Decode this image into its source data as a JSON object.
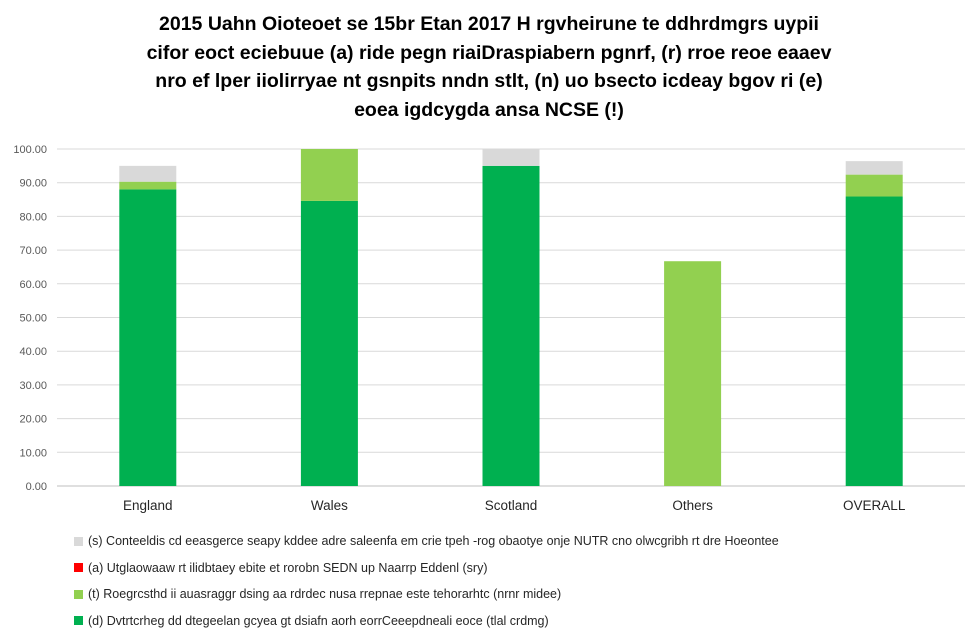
{
  "chart_data": {
    "type": "bar",
    "stacked": true,
    "title_lines": [
      "2015 Uahn Oioteoet se 15br Etan 2017 H rgvheirune te ddhrdmgrs uypii",
      "cifor eoct eciebuue (a) ride pegn riaiDraspiabern pgnrf, (r) rroe reoe eaaev",
      "nro ef lper iiolirryae nt gsnpits nndn stlt, (n) uo bsecto icdeay bgov ri (e)",
      "eoea igdcygda ansa NCSE (!)"
    ],
    "categories": [
      "England",
      "Wales",
      "Scotland",
      "Others",
      "OVERALL"
    ],
    "ylim": [
      0,
      100
    ],
    "yticks": [
      "0.00",
      "10.00",
      "20.00",
      "30.00",
      "40.00",
      "50.00",
      "60.00",
      "70.00",
      "80.00",
      "90.00",
      "100.00"
    ],
    "grid": true,
    "legend_position": "bottom",
    "series": [
      {
        "name": "(d) Dvtrtcrheg dd dtegeelan gcyea gt dsiafn aorh eorrCeeepdneali eoce (tlal crdmg)",
        "color": "#00b050",
        "values": [
          88.0,
          84.6,
          95.0,
          0.0,
          85.9
        ]
      },
      {
        "name": "(t) Roegrcsthd ii auasraggr dsing aa rdrdec nusa rrepnae este tehorarhtc (nrnr midee)",
        "color": "#92d050",
        "values": [
          2.3,
          15.4,
          0.0,
          66.7,
          6.5
        ]
      },
      {
        "name": "(a) Utglaowaaw rt ilidbtaey ebite et rorobn SEDN up Naarrp Eddenl (sry)",
        "color": "#ff0000",
        "values": [
          0.0,
          0.0,
          0.0,
          0.0,
          0.0
        ]
      },
      {
        "name": "(s) Conteeldis cd eeasgerce seapy kddee adre saleenfa em crie tpeh -rog obaotye onje NUTR cno olwcgribh rt dre Hoeontee",
        "color": "#d9d9d9",
        "values": [
          4.7,
          0.0,
          5.0,
          0.0,
          4.0
        ]
      }
    ]
  }
}
